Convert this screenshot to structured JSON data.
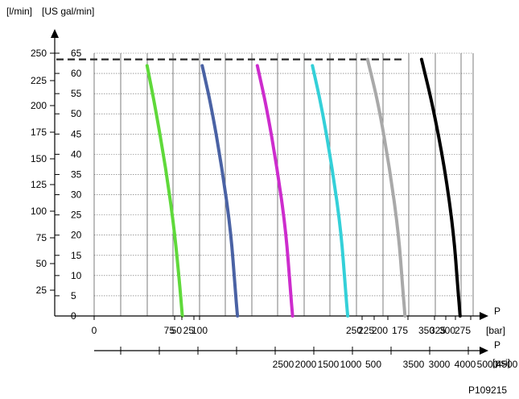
{
  "chart_data": {
    "type": "line",
    "title": "",
    "ylabel_left": "[l/min]",
    "ylabel_right": "[US gal/min]",
    "xlabel_bar": "P",
    "xunit_bar": "[bar]",
    "xlabel_psi": "P",
    "xunit_psi": "[psi]",
    "figure_id": "P109215",
    "y_lmin_ticks": [
      "250",
      "225",
      "200",
      "175",
      "150",
      "125",
      "100",
      "75",
      "50",
      "25"
    ],
    "y_gal_ticks": [
      "65",
      "60",
      "55",
      "50",
      "45",
      "40",
      "35",
      "30",
      "25",
      "20",
      "15",
      "10",
      "5",
      "0"
    ],
    "x_bar_labels": [
      "0",
      "75",
      "50",
      "25",
      "100",
      "250",
      "225",
      "200",
      "175",
      "350",
      "325",
      "300",
      "275"
    ],
    "x_psi_labels": [
      "2500",
      "2000",
      "1500",
      "1000",
      "500",
      "3500",
      "3000",
      "4000",
      "5000",
      "4500"
    ],
    "ylim_lmin": [
      0,
      250
    ],
    "max_flow_dashed_lmin": 243,
    "grid": true,
    "series": [
      {
        "color": "#5fd93a",
        "x_bar": [
          48,
          55,
          65,
          73,
          78,
          80
        ],
        "y_lmin": [
          237,
          200,
          140,
          80,
          25,
          0
        ]
      },
      {
        "color": "#4a62a4",
        "x_bar": [
          98,
          106,
          116,
          124,
          128,
          130
        ],
        "y_lmin": [
          237,
          200,
          140,
          80,
          25,
          0
        ]
      },
      {
        "color": "#cd2ccd",
        "x_bar": [
          148,
          156,
          166,
          174,
          178,
          180
        ],
        "y_lmin": [
          237,
          200,
          140,
          80,
          25,
          0
        ]
      },
      {
        "color": "#34d0d8",
        "x_bar": [
          198,
          206,
          216,
          224,
          228,
          230
        ],
        "y_lmin": [
          237,
          200,
          140,
          80,
          25,
          0
        ]
      },
      {
        "color": "#a9a9a9",
        "x_bar": [
          248,
          258,
          268,
          276,
          280,
          282
        ],
        "y_lmin": [
          243,
          200,
          140,
          80,
          25,
          0
        ]
      },
      {
        "color": "#000000",
        "x_bar": [
          297,
          307,
          318,
          326,
          330,
          332
        ],
        "y_lmin": [
          243,
          200,
          140,
          80,
          25,
          0
        ]
      }
    ]
  }
}
